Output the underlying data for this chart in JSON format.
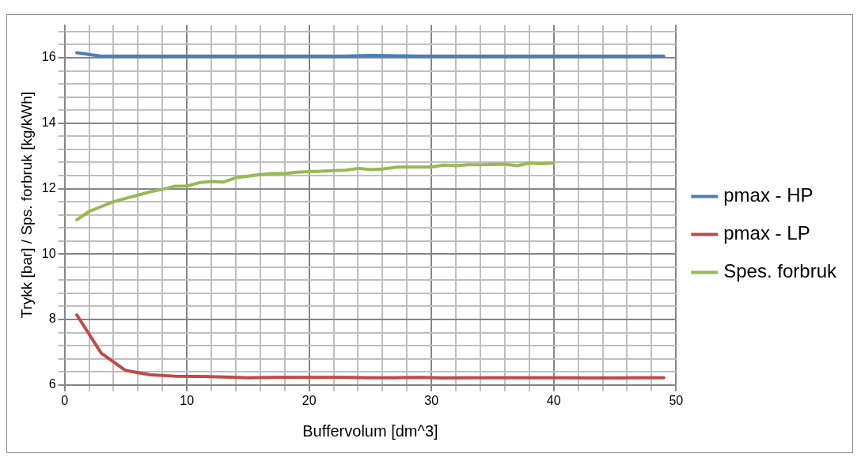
{
  "chart_data": {
    "type": "line",
    "xlabel": "Buffervolum [dm^3]",
    "ylabel": "Trykk [bar] / Sps. forbruk [kg/kWh]",
    "xlim": [
      0,
      50
    ],
    "ylim": [
      6,
      17
    ],
    "xticks": [
      0,
      {
        "value": 2,
        "label": null
      },
      {
        "value": 4,
        "label": null
      },
      {
        "value": 6,
        "label": null
      },
      {
        "value": 8,
        "label": null
      },
      10,
      {
        "value": 12,
        "label": null
      },
      {
        "value": 14,
        "label": null
      },
      {
        "value": 16,
        "label": null
      },
      {
        "value": 18,
        "label": null
      },
      20,
      {
        "value": 22,
        "label": null
      },
      {
        "value": 24,
        "label": null
      },
      {
        "value": 26,
        "label": null
      },
      {
        "value": 28,
        "label": null
      },
      30,
      {
        "value": 32,
        "label": null
      },
      {
        "value": 34,
        "label": null
      },
      {
        "value": 36,
        "label": null
      },
      {
        "value": 38,
        "label": null
      },
      40,
      {
        "value": 42,
        "label": null
      },
      {
        "value": 44,
        "label": null
      },
      {
        "value": 46,
        "label": null
      },
      {
        "value": 48,
        "label": null
      },
      50
    ],
    "yticks": [
      6,
      {
        "value": 6.4,
        "label": null
      },
      {
        "value": 6.8,
        "label": null
      },
      {
        "value": 7.2,
        "label": null
      },
      {
        "value": 7.6,
        "label": null
      },
      8,
      {
        "value": 8.4,
        "label": null
      },
      {
        "value": 8.8,
        "label": null
      },
      {
        "value": 9.2,
        "label": null
      },
      {
        "value": 9.6,
        "label": null
      },
      10,
      {
        "value": 10.4,
        "label": null
      },
      {
        "value": 10.8,
        "label": null
      },
      {
        "value": 11.2,
        "label": null
      },
      {
        "value": 11.6,
        "label": null
      },
      12,
      {
        "value": 12.4,
        "label": null
      },
      {
        "value": 12.8,
        "label": null
      },
      {
        "value": 13.2,
        "label": null
      },
      {
        "value": 13.6,
        "label": null
      },
      14,
      {
        "value": 14.4,
        "label": null
      },
      {
        "value": 14.8,
        "label": null
      },
      {
        "value": 15.2,
        "label": null
      },
      {
        "value": 15.6,
        "label": null
      },
      16,
      {
        "value": 16.4,
        "label": null
      },
      {
        "value": 16.8,
        "label": null
      }
    ],
    "grid": true,
    "legend": "right",
    "marker": "none",
    "line_style": "solid",
    "series": [
      {
        "name": "pmax - HP",
        "color": "#4a7ebb",
        "x": [
          1,
          3,
          5,
          7,
          9,
          11,
          13,
          15,
          17,
          19,
          21,
          23,
          25,
          27,
          29,
          31,
          33,
          35,
          37,
          39,
          41,
          43,
          45,
          47,
          49
        ],
        "values": [
          16.15,
          16.05,
          16.05,
          16.05,
          16.05,
          16.05,
          16.05,
          16.05,
          16.05,
          16.05,
          16.05,
          16.05,
          16.07,
          16.06,
          16.05,
          16.05,
          16.05,
          16.05,
          16.05,
          16.05,
          16.05,
          16.05,
          16.05,
          16.05,
          16.05
        ]
      },
      {
        "name": "pmax - LP",
        "color": "#be4b48",
        "x": [
          1,
          3,
          5,
          7,
          9,
          11,
          13,
          15,
          17,
          19,
          21,
          23,
          25,
          27,
          29,
          31,
          33,
          35,
          37,
          39,
          41,
          43,
          45,
          47,
          49
        ],
        "values": [
          8.14,
          6.97,
          6.44,
          6.31,
          6.27,
          6.26,
          6.24,
          6.22,
          6.23,
          6.23,
          6.23,
          6.23,
          6.22,
          6.22,
          6.23,
          6.21,
          6.22,
          6.22,
          6.22,
          6.22,
          6.22,
          6.21,
          6.21,
          6.22,
          6.22
        ]
      },
      {
        "name": "Spes. forbruk",
        "color": "#98b954",
        "x": [
          1,
          2,
          3,
          4,
          5,
          6,
          7,
          8,
          9,
          10,
          11,
          12,
          13,
          14,
          15,
          16,
          17,
          18,
          19,
          20,
          21,
          22,
          23,
          24,
          25,
          26,
          27,
          28,
          29,
          30,
          31,
          32,
          33,
          34,
          35,
          36,
          37,
          38,
          39,
          40
        ],
        "values": [
          11.05,
          11.3,
          11.45,
          11.6,
          11.7,
          11.8,
          11.9,
          11.98,
          12.07,
          12.08,
          12.18,
          12.22,
          12.2,
          12.33,
          12.38,
          12.43,
          12.46,
          12.46,
          12.5,
          12.52,
          12.53,
          12.55,
          12.56,
          12.62,
          12.58,
          12.6,
          12.65,
          12.66,
          12.66,
          12.66,
          12.72,
          12.7,
          12.73,
          12.73,
          12.74,
          12.75,
          12.7,
          12.78,
          12.76,
          12.78
        ]
      }
    ]
  }
}
